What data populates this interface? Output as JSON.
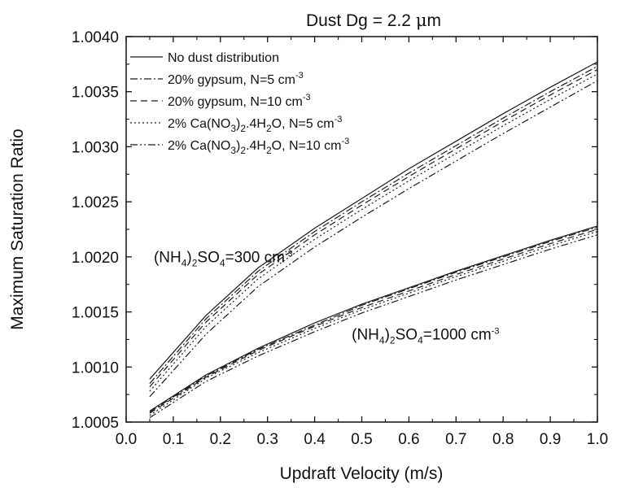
{
  "chart_data": {
    "type": "line",
    "title_prefix": "Dust Dg = 2.2 ",
    "title_mu": "μ",
    "title_unit": "m",
    "xlabel": "Updraft Velocity (m/s)",
    "ylabel": "Maximum Saturation Ratio",
    "xlim": [
      0.0,
      1.0
    ],
    "ylim": [
      1.0005,
      1.004
    ],
    "xticks": [
      "0.0",
      "0.1",
      "0.2",
      "0.3",
      "0.4",
      "0.5",
      "0.6",
      "0.7",
      "0.8",
      "0.9",
      "1.0"
    ],
    "yticks": [
      "1.0005",
      "1.0010",
      "1.0015",
      "1.0020",
      "1.0025",
      "1.0030",
      "1.0035",
      "1.0040"
    ],
    "grid": false,
    "legend_position": "top-left",
    "legend": [
      {
        "id": "nodust",
        "dash": "",
        "parts": [
          {
            "t": "No dust distribution"
          }
        ]
      },
      {
        "id": "gyp5",
        "dash": "9 3 2 3",
        "parts": [
          {
            "t": "20% gypsum, N=5 cm"
          },
          {
            "t": "-3",
            "sup": true
          }
        ]
      },
      {
        "id": "gyp10",
        "dash": "8 5",
        "parts": [
          {
            "t": "20% gypsum, N=10 cm"
          },
          {
            "t": "-3",
            "sup": true
          }
        ]
      },
      {
        "id": "cano5",
        "dash": "2 3",
        "parts": [
          {
            "t": "2% Ca(NO"
          },
          {
            "t": "3",
            "sub": true
          },
          {
            "t": ")"
          },
          {
            "t": "2",
            "sub": true
          },
          {
            "t": ".4H"
          },
          {
            "t": "2",
            "sub": true
          },
          {
            "t": "O, N=5 cm"
          },
          {
            "t": "-3",
            "sup": true
          }
        ]
      },
      {
        "id": "cano10",
        "dash": "9 3 2 3 2 3",
        "parts": [
          {
            "t": "2% Ca(NO"
          },
          {
            "t": "3",
            "sub": true
          },
          {
            "t": ")"
          },
          {
            "t": "2",
            "sub": true
          },
          {
            "t": ".4H"
          },
          {
            "t": "2",
            "sub": true
          },
          {
            "t": "O, N=10 cm"
          },
          {
            "t": "-3",
            "sup": true
          }
        ]
      }
    ],
    "annotations": [
      {
        "id": "anno-300",
        "x": 0.05,
        "y": 1.00195,
        "parts": [
          {
            "t": "(NH"
          },
          {
            "t": "4",
            "sub": true
          },
          {
            "t": ")"
          },
          {
            "t": "2",
            "sub": true
          },
          {
            "t": "SO"
          },
          {
            "t": "4",
            "sub": true
          },
          {
            "t": "=300 cm"
          },
          {
            "t": "-3",
            "sup": true
          }
        ]
      },
      {
        "id": "anno-1000",
        "x": 0.47,
        "y": 1.00125,
        "parts": [
          {
            "t": "(NH"
          },
          {
            "t": "4",
            "sub": true
          },
          {
            "t": ")"
          },
          {
            "t": "2",
            "sub": true
          },
          {
            "t": "SO"
          },
          {
            "t": "4",
            "sub": true
          },
          {
            "t": "=1000 cm"
          },
          {
            "t": "-3",
            "sup": true
          }
        ]
      }
    ],
    "x": [
      0.05,
      0.17,
      0.28,
      0.4,
      0.5,
      0.6,
      0.7,
      0.8,
      0.9,
      1.0
    ],
    "series": [
      {
        "group": "300",
        "style": "nodust",
        "values": [
          1.00089,
          1.00147,
          1.0019,
          1.00226,
          1.00253,
          1.0028,
          1.00305,
          1.0033,
          1.00354,
          1.00377
        ]
      },
      {
        "group": "300",
        "style": "gyp5",
        "values": [
          1.00085,
          1.00144,
          1.00187,
          1.00223,
          1.0025,
          1.00276,
          1.00301,
          1.00326,
          1.0035,
          1.00373
        ]
      },
      {
        "group": "300",
        "style": "gyp10",
        "values": [
          1.00082,
          1.00141,
          1.00184,
          1.0022,
          1.00247,
          1.00273,
          1.00298,
          1.00323,
          1.00347,
          1.0037
        ]
      },
      {
        "group": "300",
        "style": "cano5",
        "values": [
          1.00078,
          1.00137,
          1.0018,
          1.00216,
          1.00243,
          1.00269,
          1.00294,
          1.00319,
          1.00343,
          1.00366
        ]
      },
      {
        "group": "300",
        "style": "cano10",
        "values": [
          1.00073,
          1.0013,
          1.00173,
          1.00209,
          1.00236,
          1.00262,
          1.00287,
          1.00312,
          1.00336,
          1.0036
        ]
      },
      {
        "group": "1000",
        "style": "nodust",
        "values": [
          1.0006,
          1.00093,
          1.00117,
          1.0014,
          1.00157,
          1.00172,
          1.00187,
          1.00201,
          1.00215,
          1.00228
        ]
      },
      {
        "group": "1000",
        "style": "gyp5",
        "values": [
          1.00059,
          1.00092,
          1.00116,
          1.00138,
          1.00156,
          1.00171,
          1.00186,
          1.002,
          1.00214,
          1.00227
        ]
      },
      {
        "group": "1000",
        "style": "gyp10",
        "values": [
          1.00058,
          1.00091,
          1.00115,
          1.00137,
          1.00154,
          1.00169,
          1.00184,
          1.00198,
          1.00212,
          1.00225
        ]
      },
      {
        "group": "1000",
        "style": "cano5",
        "values": [
          1.00056,
          1.0009,
          1.00113,
          1.00135,
          1.00152,
          1.00167,
          1.00182,
          1.00196,
          1.0021,
          1.00223
        ]
      },
      {
        "group": "1000",
        "style": "cano10",
        "values": [
          1.00054,
          1.00087,
          1.0011,
          1.00132,
          1.00149,
          1.00164,
          1.00179,
          1.00193,
          1.00207,
          1.0022
        ]
      }
    ],
    "line_color": "#1a1a1a"
  }
}
